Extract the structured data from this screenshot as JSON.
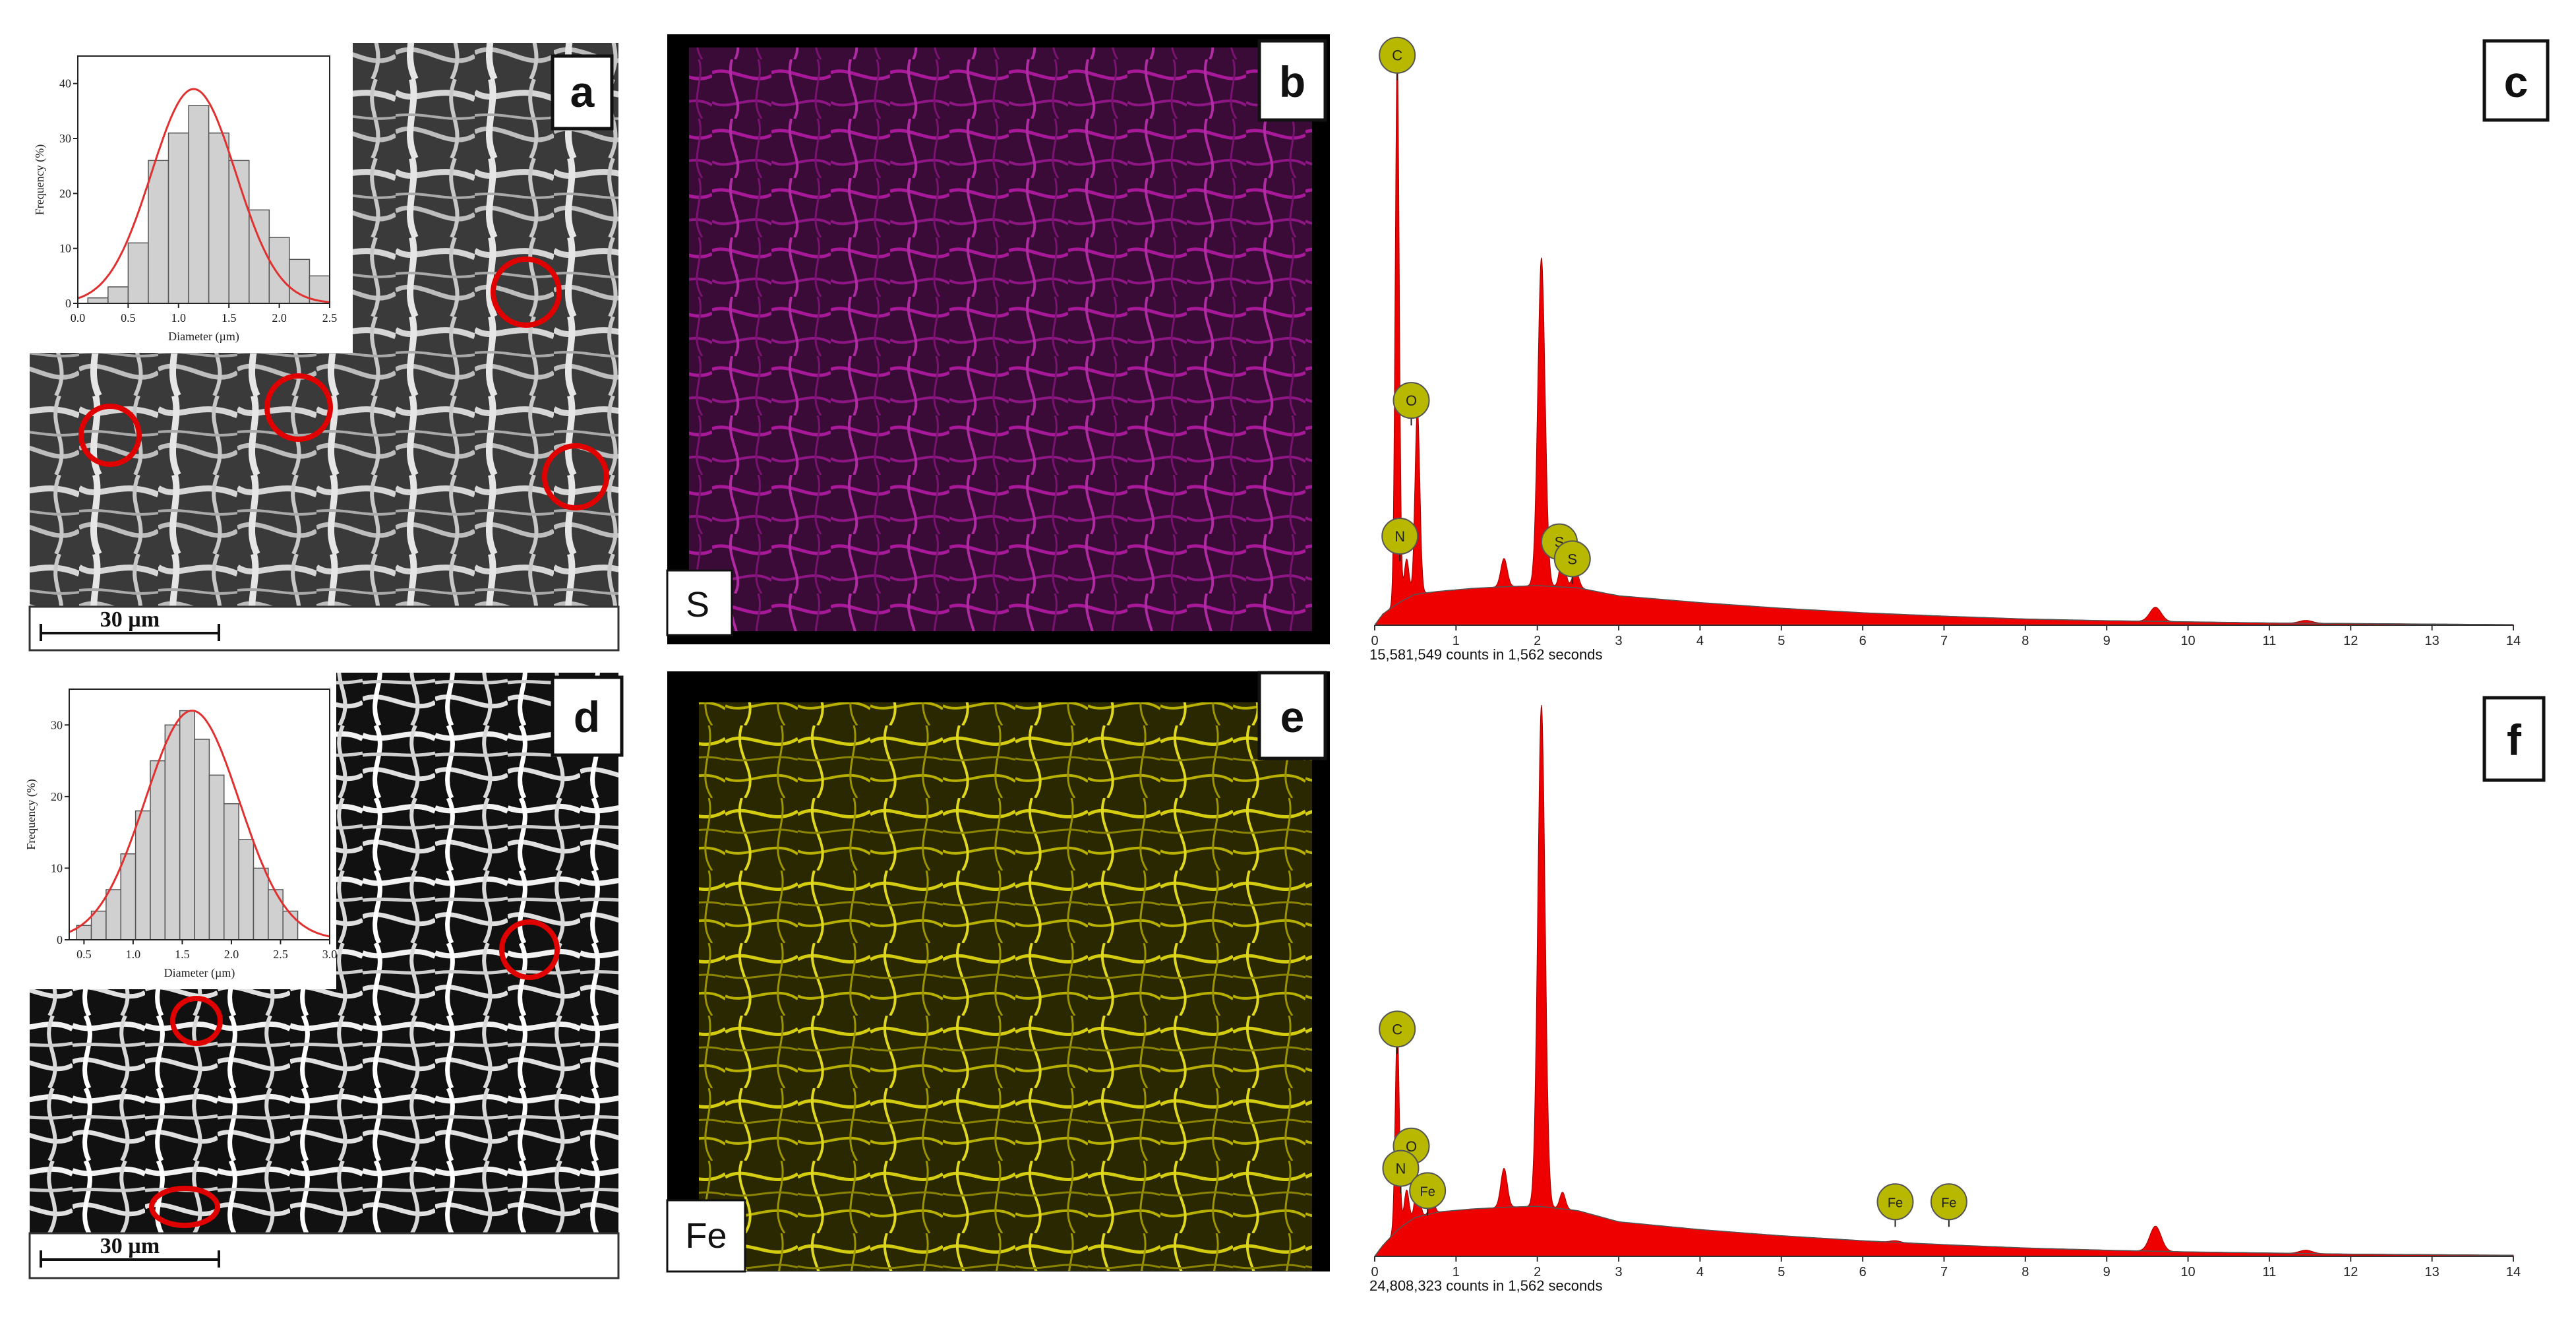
{
  "panels": {
    "a": {
      "label": "a",
      "scale_bar": "30 µm"
    },
    "b": {
      "label": "b",
      "element": "S"
    },
    "c": {
      "label": "c",
      "counts_text": "15,581,549 counts in 1,562 seconds"
    },
    "d": {
      "label": "d",
      "scale_bar": "30 µm"
    },
    "e": {
      "label": "e",
      "element": "Fe"
    },
    "f": {
      "label": "f",
      "counts_text": "24,808,323 counts in 1,562 seconds"
    }
  },
  "colors": {
    "spectrum_fill": "#ee0000",
    "marker_fill": "#b8b800",
    "histogram_bar": "#d0d0d0",
    "fit_curve": "#e03030",
    "highlight_circle": "#e00000",
    "map_S": "#b0189c",
    "map_Fe": "#c8c000"
  },
  "chart_data": [
    {
      "type": "bar",
      "panel": "a-inset",
      "xlabel": "Diameter (µm)",
      "ylabel": "Frequency (%)",
      "xlim": [
        0.0,
        2.5
      ],
      "ylim": [
        0,
        45
      ],
      "xticks": [
        "0.0",
        "0.5",
        "1.0",
        "1.5",
        "2.0",
        "2.5"
      ],
      "yticks": [
        "0",
        "10",
        "20",
        "30",
        "40"
      ],
      "bin_width": 0.2,
      "bin_centers": [
        0.2,
        0.4,
        0.6,
        0.8,
        1.0,
        1.2,
        1.4,
        1.6,
        1.8,
        2.0,
        2.2,
        2.4
      ],
      "values": [
        1,
        3,
        11,
        26,
        31,
        36,
        31,
        26,
        17,
        12,
        8,
        5
      ],
      "fit": {
        "type": "gaussian",
        "mean": 1.15,
        "sd": 0.42,
        "peak": 39
      }
    },
    {
      "type": "bar",
      "panel": "d-inset",
      "xlabel": "Diameter (µm)",
      "ylabel": "Frequency (%)",
      "xlim": [
        0.35,
        3.0
      ],
      "ylim": [
        0,
        35
      ],
      "xticks": [
        "0.5",
        "1.0",
        "1.5",
        "2.0",
        "2.5",
        "3.0"
      ],
      "yticks": [
        "0",
        "10",
        "20",
        "30"
      ],
      "bin_width": 0.15,
      "bin_centers": [
        0.5,
        0.65,
        0.8,
        0.95,
        1.1,
        1.25,
        1.4,
        1.55,
        1.7,
        1.85,
        2.0,
        2.15,
        2.3,
        2.45,
        2.6
      ],
      "values": [
        2,
        4,
        7,
        12,
        18,
        25,
        30,
        32,
        28,
        23,
        19,
        14,
        10,
        7,
        4
      ],
      "fit": {
        "type": "gaussian",
        "mean": 1.6,
        "sd": 0.48,
        "peak": 32
      }
    },
    {
      "type": "area",
      "panel": "c",
      "xlim": [
        0,
        14
      ],
      "xticks": [
        "0",
        "1",
        "2",
        "3",
        "4",
        "5",
        "6",
        "7",
        "8",
        "9",
        "10",
        "11",
        "12",
        "13",
        "14"
      ],
      "ymax_relative": 1.0,
      "background": [
        [
          0.0,
          0.0
        ],
        [
          0.1,
          0.02
        ],
        [
          0.3,
          0.04
        ],
        [
          0.5,
          0.055
        ],
        [
          0.8,
          0.06
        ],
        [
          1.2,
          0.065
        ],
        [
          1.6,
          0.068
        ],
        [
          2.0,
          0.07
        ],
        [
          2.5,
          0.066
        ],
        [
          3.0,
          0.052
        ],
        [
          4.0,
          0.04
        ],
        [
          5.0,
          0.03
        ],
        [
          6.0,
          0.022
        ],
        [
          7.0,
          0.016
        ],
        [
          8.0,
          0.011
        ],
        [
          9.0,
          0.008
        ],
        [
          10.0,
          0.006
        ],
        [
          11.0,
          0.004
        ],
        [
          12.0,
          0.003
        ],
        [
          13.0,
          0.002
        ],
        [
          14.0,
          0.001
        ]
      ],
      "peaks": [
        {
          "x": 0.277,
          "height": 0.97,
          "width": 0.025
        },
        {
          "x": 0.392,
          "height": 0.07,
          "width": 0.03
        },
        {
          "x": 0.525,
          "height": 0.33,
          "width": 0.03
        },
        {
          "x": 1.59,
          "height": 0.05,
          "width": 0.04
        },
        {
          "x": 2.05,
          "height": 0.58,
          "width": 0.045
        },
        {
          "x": 2.31,
          "height": 0.06,
          "width": 0.035
        },
        {
          "x": 2.47,
          "height": 0.03,
          "width": 0.04
        },
        {
          "x": 9.6,
          "height": 0.025,
          "width": 0.07
        },
        {
          "x": 11.45,
          "height": 0.005,
          "width": 0.08
        }
      ],
      "markers": [
        {
          "element": "C",
          "x": 0.277,
          "y": 0.97
        },
        {
          "element": "O",
          "x": 0.45,
          "y": 0.36
        },
        {
          "element": "N",
          "x": 0.31,
          "y": 0.12
        },
        {
          "element": "S",
          "x": 2.27,
          "y": 0.11
        },
        {
          "element": "S",
          "x": 2.43,
          "y": 0.08
        }
      ]
    },
    {
      "type": "area",
      "panel": "f",
      "xlim": [
        0,
        14
      ],
      "xticks": [
        "0",
        "1",
        "2",
        "3",
        "4",
        "5",
        "6",
        "7",
        "8",
        "9",
        "10",
        "11",
        "12",
        "13",
        "14"
      ],
      "ymax_relative": 1.0,
      "background": [
        [
          0.0,
          0.0
        ],
        [
          0.1,
          0.02
        ],
        [
          0.3,
          0.05
        ],
        [
          0.5,
          0.07
        ],
        [
          0.8,
          0.08
        ],
        [
          1.2,
          0.085
        ],
        [
          1.6,
          0.088
        ],
        [
          2.0,
          0.09
        ],
        [
          2.5,
          0.082
        ],
        [
          3.0,
          0.062
        ],
        [
          4.0,
          0.048
        ],
        [
          5.0,
          0.037
        ],
        [
          6.0,
          0.028
        ],
        [
          7.0,
          0.021
        ],
        [
          8.0,
          0.015
        ],
        [
          9.0,
          0.011
        ],
        [
          10.0,
          0.008
        ],
        [
          11.0,
          0.006
        ],
        [
          12.0,
          0.004
        ],
        [
          13.0,
          0.003
        ],
        [
          14.0,
          0.002
        ]
      ],
      "peaks": [
        {
          "x": 0.277,
          "height": 0.37,
          "width": 0.025
        },
        {
          "x": 0.392,
          "height": 0.06,
          "width": 0.03
        },
        {
          "x": 0.525,
          "height": 0.07,
          "width": 0.03
        },
        {
          "x": 0.705,
          "height": 0.03,
          "width": 0.03
        },
        {
          "x": 1.59,
          "height": 0.07,
          "width": 0.04
        },
        {
          "x": 2.05,
          "height": 0.9,
          "width": 0.045
        },
        {
          "x": 2.31,
          "height": 0.03,
          "width": 0.035
        },
        {
          "x": 6.4,
          "height": 0.003,
          "width": 0.06
        },
        {
          "x": 9.6,
          "height": 0.045,
          "width": 0.07
        },
        {
          "x": 11.45,
          "height": 0.006,
          "width": 0.08
        }
      ],
      "markers": [
        {
          "element": "C",
          "x": 0.277,
          "y": 0.37
        },
        {
          "element": "O",
          "x": 0.45,
          "y": 0.16
        },
        {
          "element": "N",
          "x": 0.32,
          "y": 0.12
        },
        {
          "element": "Fe",
          "x": 0.65,
          "y": 0.08
        },
        {
          "element": "Fe",
          "x": 6.4,
          "y": 0.06
        },
        {
          "element": "Fe",
          "x": 7.06,
          "y": 0.06
        }
      ]
    }
  ]
}
